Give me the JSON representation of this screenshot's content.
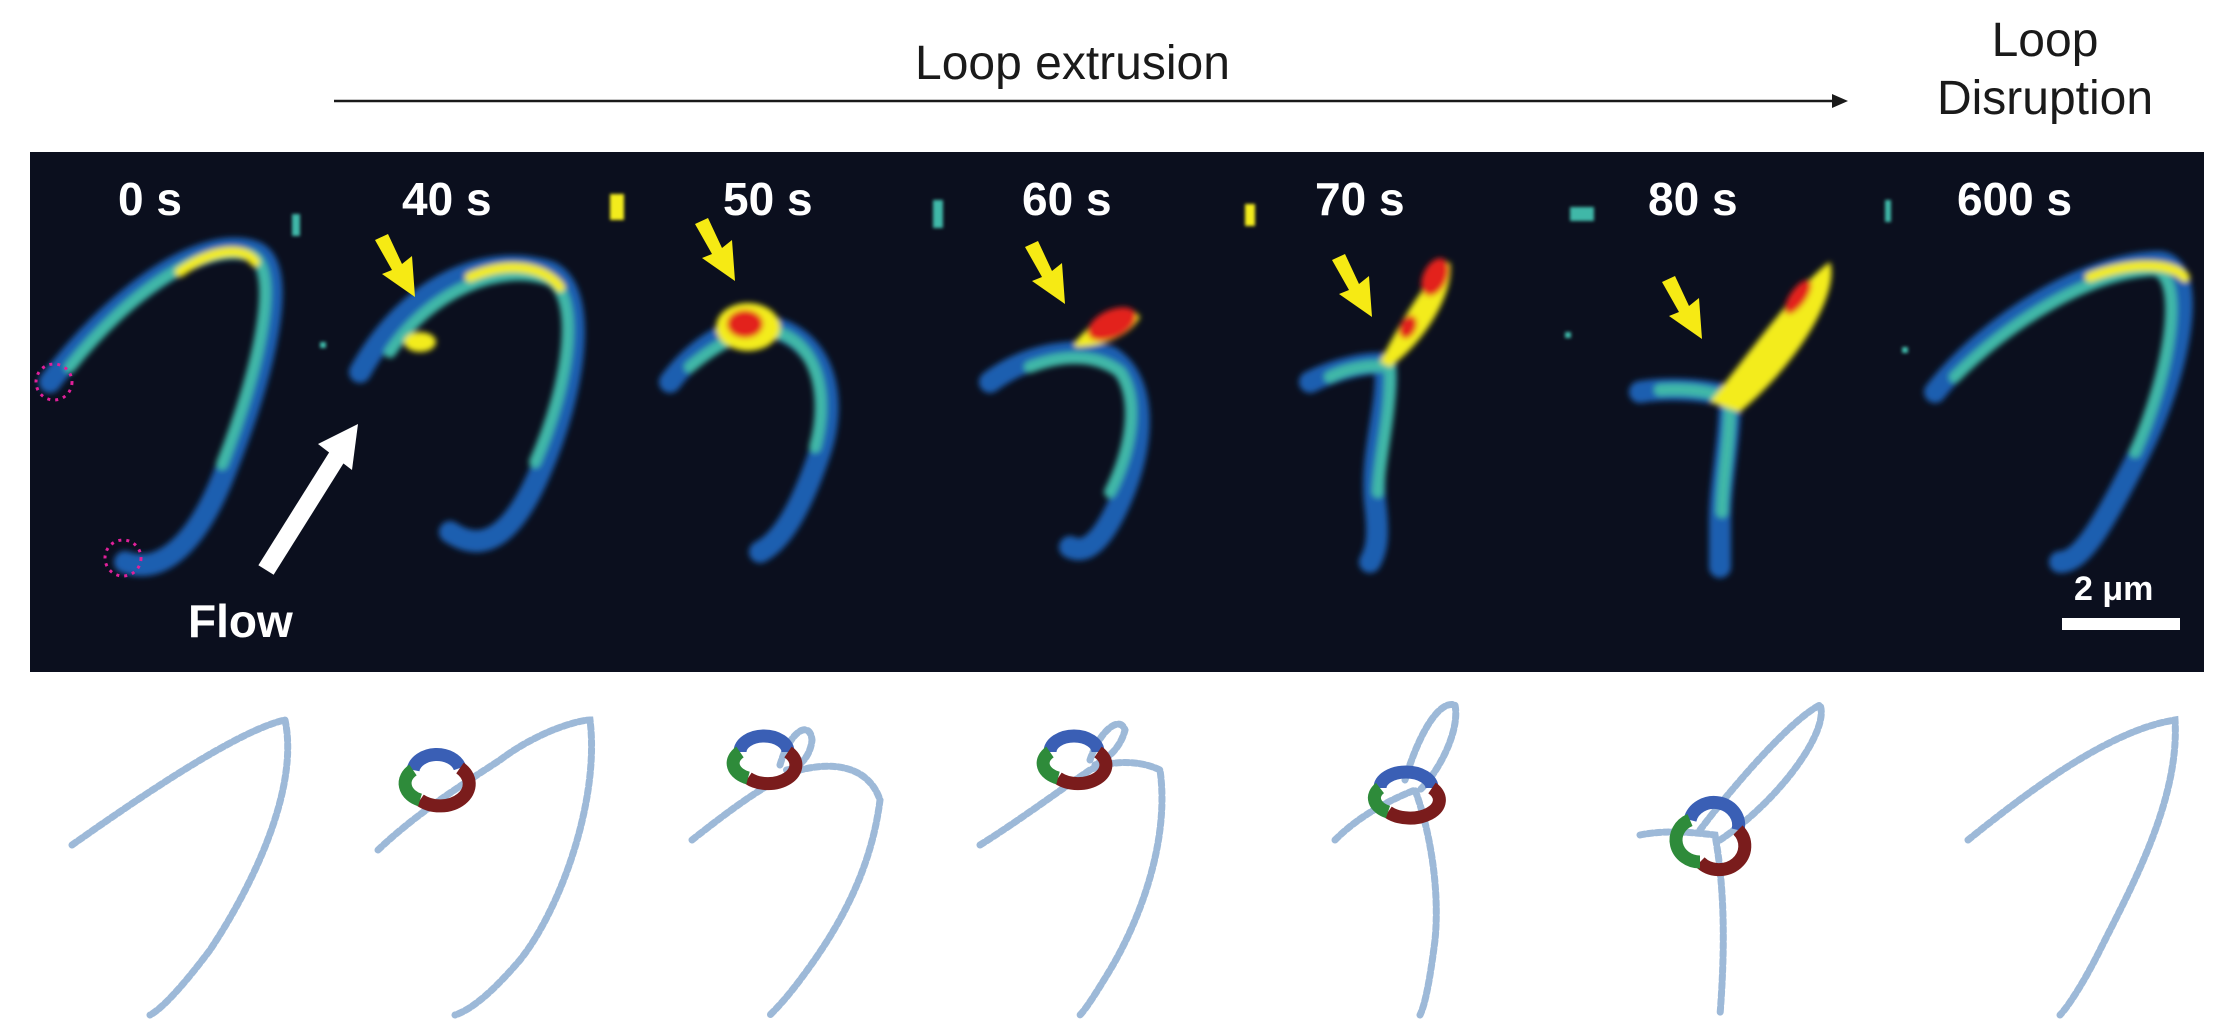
{
  "header": {
    "extrusion_label": "Loop extrusion",
    "disruption_label_line1": "Loop",
    "disruption_label_line2": "Disruption"
  },
  "panel": {
    "timepoints": [
      "0 s",
      "40 s",
      "50 s",
      "60 s",
      "70 s",
      "80 s",
      "600 s"
    ],
    "flow_label": "Flow",
    "scale_label": "2 μm"
  },
  "colors": {
    "background": "#0b0f1e",
    "dna_low": "#1f5fb0",
    "dna_mid": "#3fb8a8",
    "dna_high": "#f3ec1a",
    "dna_peak": "#e3221b",
    "arrow_yellow": "#f6ea14",
    "tether_magenta": "#e0209a",
    "ring_blue": "#3a5fb5",
    "ring_green": "#2e8b3a",
    "ring_red": "#7a1c1c",
    "cartoon_dna": "#9db9d8"
  },
  "icons": [
    "yellow-arrow-icon",
    "flow-arrow-icon",
    "tether-circle-icon",
    "condensin-ring-icon"
  ]
}
